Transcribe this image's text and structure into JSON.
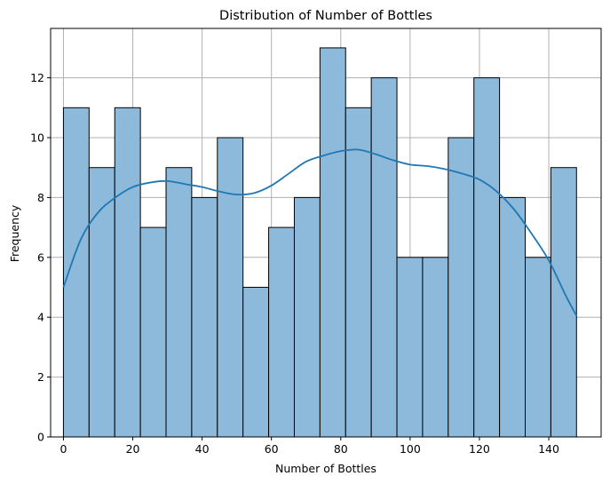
{
  "chart_data": {
    "type": "bar",
    "subtype": "histogram-with-kde",
    "title": "Distribution of Number of Bottles",
    "xlabel": "Number of Bottles",
    "ylabel": "Frequency",
    "xlim": [
      -3.7,
      155.1
    ],
    "ylim": [
      0,
      13.65
    ],
    "xticks": [
      0,
      20,
      40,
      60,
      80,
      100,
      120,
      140
    ],
    "yticks": [
      0,
      2,
      4,
      6,
      8,
      10,
      12
    ],
    "grid": true,
    "bin_edges": [
      0,
      7.4,
      14.8,
      22.2,
      29.6,
      37.0,
      44.4,
      51.8,
      59.2,
      66.6,
      74.0,
      81.4,
      88.8,
      96.2,
      103.6,
      111.0,
      118.4,
      125.8,
      133.2,
      140.6,
      148.0
    ],
    "values": [
      11,
      9,
      11,
      7,
      9,
      8,
      10,
      5,
      7,
      8,
      13,
      11,
      12,
      6,
      6,
      10,
      12,
      8,
      6,
      9
    ],
    "bar_color": "#8db9db",
    "bar_edge_color": "#000000",
    "kde": {
      "color": "#1f77b4",
      "x": [
        0,
        5,
        10,
        15,
        20,
        25,
        30,
        35,
        40,
        45,
        50,
        55,
        60,
        65,
        70,
        75,
        80,
        85,
        90,
        95,
        100,
        105,
        110,
        115,
        120,
        125,
        130,
        135,
        140,
        145,
        148
      ],
      "y": [
        5.0,
        6.6,
        7.5,
        8.0,
        8.35,
        8.5,
        8.55,
        8.45,
        8.35,
        8.2,
        8.1,
        8.15,
        8.4,
        8.8,
        9.2,
        9.4,
        9.55,
        9.6,
        9.45,
        9.25,
        9.1,
        9.05,
        8.95,
        8.8,
        8.6,
        8.2,
        7.6,
        6.8,
        5.9,
        4.7,
        4.05
      ]
    }
  }
}
